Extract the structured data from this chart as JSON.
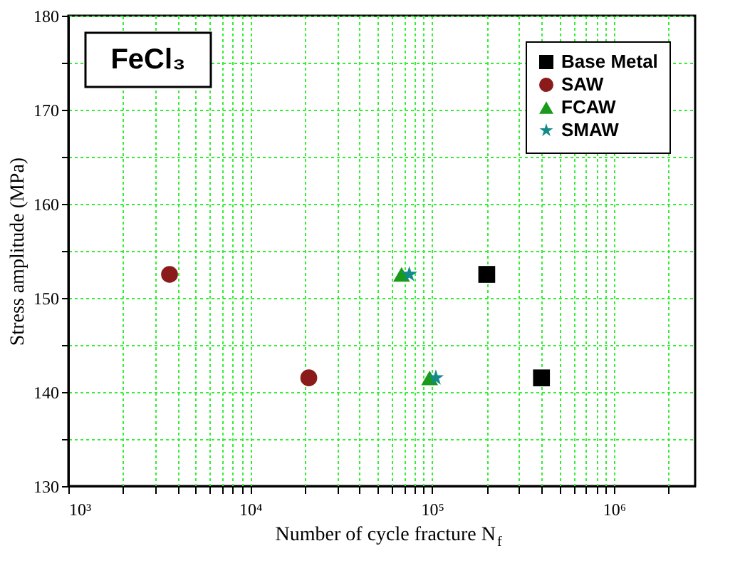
{
  "chart_data": {
    "type": "scatter",
    "xlabel": "Number of cycle fracture N$_{f}$",
    "ylabel": "Stress amplitude (MPa)",
    "annotations": [
      "FeCl₃"
    ],
    "series": [
      {
        "name": "Base Metal",
        "color": "#000000",
        "marker": "square",
        "x": [
          200000,
          400000
        ],
        "values": [
          152.5,
          141.5
        ]
      },
      {
        "name": "SAW",
        "color": "#8b1a1a",
        "marker": "circle",
        "x": [
          3600,
          21000
        ],
        "values": [
          152.5,
          141.5
        ]
      },
      {
        "name": "FCAW",
        "color": "#1a9a1a",
        "marker": "triangle",
        "x": [
          68000,
          97000
        ],
        "values": [
          152.5,
          141.5
        ]
      },
      {
        "name": "SMAW",
        "color": "#128a8a",
        "marker": "star",
        "x": [
          75000,
          105000
        ],
        "values": [
          152.5,
          141.5
        ]
      }
    ],
    "log": "x",
    "xlim": [
      1000,
      2800000
    ],
    "ylim": [
      130,
      180
    ],
    "xticks": [
      {
        "value": 1000,
        "label": "10³"
      },
      {
        "value": 2000,
        "label": null
      },
      {
        "value": 3000,
        "label": null
      },
      {
        "value": 4000,
        "label": null
      },
      {
        "value": 5000,
        "label": null
      },
      {
        "value": 6000,
        "label": null
      },
      {
        "value": 7000,
        "label": null
      },
      {
        "value": 8000,
        "label": null
      },
      {
        "value": 9000,
        "label": null
      },
      {
        "value": 10000,
        "label": "10⁴"
      },
      {
        "value": 20000,
        "label": null
      },
      {
        "value": 30000,
        "label": null
      },
      {
        "value": 40000,
        "label": null
      },
      {
        "value": 50000,
        "label": null
      },
      {
        "value": 60000,
        "label": null
      },
      {
        "value": 70000,
        "label": null
      },
      {
        "value": 80000,
        "label": null
      },
      {
        "value": 90000,
        "label": null
      },
      {
        "value": 100000,
        "label": "10⁵"
      },
      {
        "value": 200000,
        "label": null
      },
      {
        "value": 300000,
        "label": null
      },
      {
        "value": 400000,
        "label": null
      },
      {
        "value": 500000,
        "label": null
      },
      {
        "value": 600000,
        "label": null
      },
      {
        "value": 700000,
        "label": null
      },
      {
        "value": 800000,
        "label": null
      },
      {
        "value": 900000,
        "label": null
      },
      {
        "value": 1000000,
        "label": "10⁶"
      },
      {
        "value": 2000000,
        "label": null
      }
    ],
    "yticks": [
      130,
      {
        "value": 135,
        "label": null
      },
      140,
      {
        "value": 145,
        "label": null
      },
      150,
      {
        "value": 155,
        "label": null
      },
      160,
      {
        "value": 165,
        "label": null
      },
      170,
      {
        "value": 175,
        "label": null
      },
      180
    ],
    "grid": true,
    "legend": "top right"
  }
}
